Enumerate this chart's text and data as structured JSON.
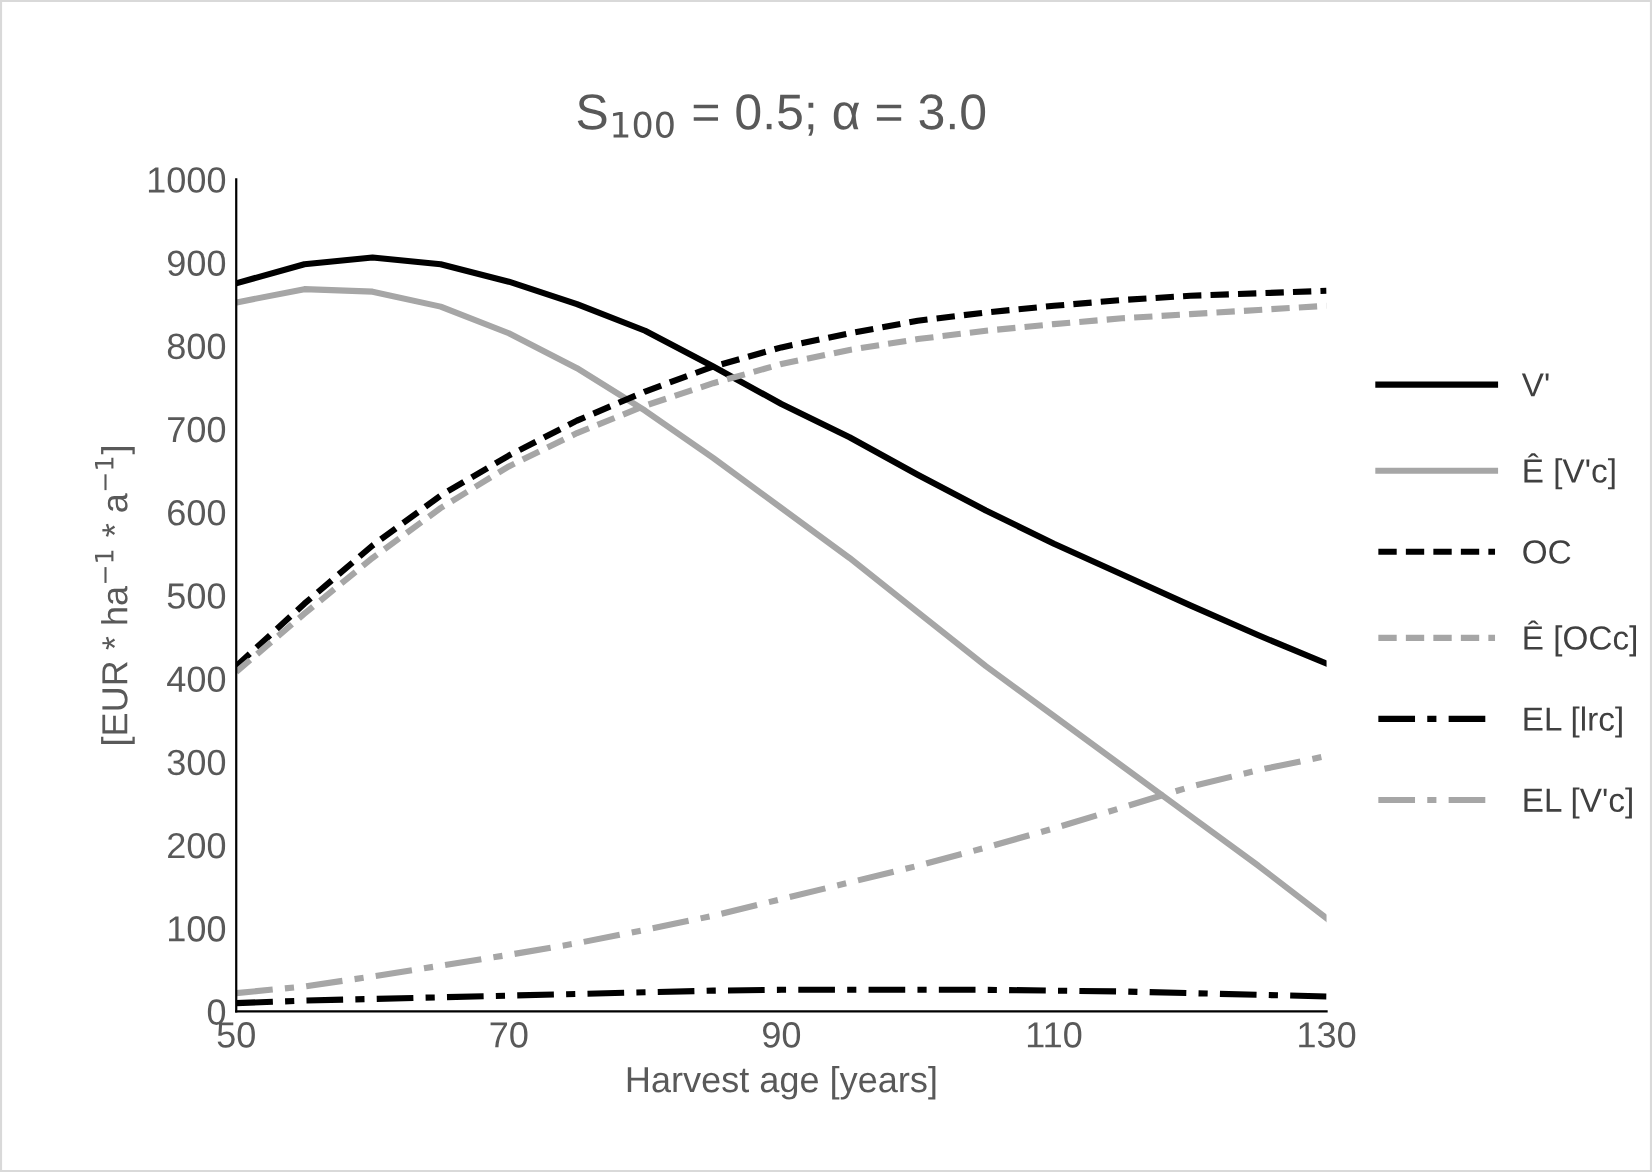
{
  "chart_data": {
    "type": "line",
    "title": "S$_{100}$ = 0.5; α = 3.0",
    "xlabel": "Harvest age [years]",
    "ylabel": "[EUR * ha$^{−1}$ * a$^{−1}$]",
    "x": [
      50,
      55,
      60,
      65,
      70,
      75,
      80,
      85,
      90,
      95,
      100,
      105,
      110,
      115,
      120,
      125,
      130
    ],
    "xlim": [
      50,
      130
    ],
    "xticks": [
      50,
      70,
      90,
      110,
      130
    ],
    "ylim": [
      0,
      1000
    ],
    "yticks": [
      0,
      100,
      200,
      300,
      400,
      500,
      600,
      700,
      800,
      900,
      1000
    ],
    "grid": false,
    "legend": "right",
    "marker": "none",
    "series": [
      {
        "name": "V'",
        "color": "#000000",
        "line_style": "solid",
        "values": [
          875,
          898,
          906,
          898,
          877,
          850,
          818,
          775,
          730,
          690,
          645,
          602,
          562,
          525,
          488,
          452,
          418
        ]
      },
      {
        "name": "Ê [V'c]",
        "color": "#a6a6a6",
        "line_style": "solid",
        "values": [
          852,
          868,
          865,
          847,
          815,
          773,
          722,
          665,
          605,
          545,
          480,
          415,
          355,
          295,
          235,
          175,
          112
        ]
      },
      {
        "name": "OC",
        "color": "#000000",
        "line_style": "dashed",
        "values": [
          415,
          490,
          560,
          620,
          668,
          710,
          745,
          775,
          798,
          815,
          830,
          840,
          848,
          855,
          860,
          863,
          866
        ]
      },
      {
        "name": "Ê [OCc]",
        "color": "#a6a6a6",
        "line_style": "dashed",
        "values": [
          408,
          478,
          545,
          605,
          655,
          695,
          728,
          755,
          778,
          795,
          808,
          818,
          826,
          833,
          838,
          843,
          848
        ]
      },
      {
        "name": "EL [lrc]",
        "color": "#000000",
        "line_style": "dashdot",
        "values": [
          10,
          13,
          15,
          17,
          19,
          21,
          23,
          25,
          26,
          26,
          26,
          26,
          25,
          24,
          22,
          20,
          18
        ]
      },
      {
        "name": "EL [V'c]",
        "color": "#a6a6a6",
        "line_style": "dashdot",
        "values": [
          22,
          30,
          42,
          55,
          68,
          82,
          98,
          115,
          135,
          155,
          175,
          197,
          220,
          245,
          270,
          290,
          307
        ]
      }
    ]
  }
}
